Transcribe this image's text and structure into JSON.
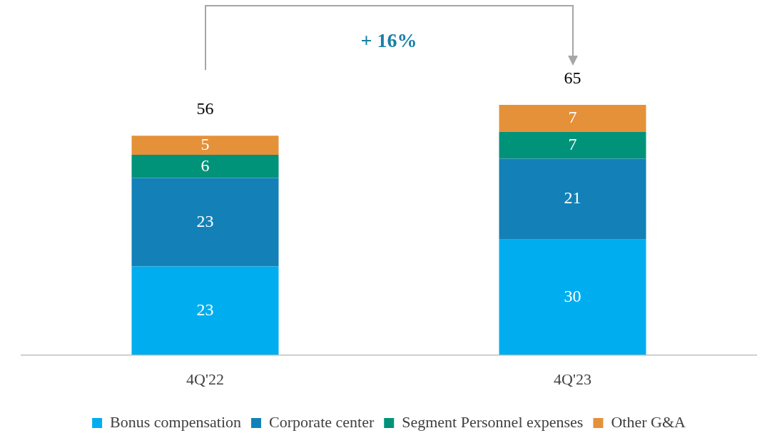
{
  "chart_data": {
    "type": "bar",
    "stacked": true,
    "categories": [
      "4Q'22",
      "4Q'23"
    ],
    "series": [
      {
        "name": "Bonus compensation",
        "color": "#00adef",
        "values": [
          23,
          30
        ]
      },
      {
        "name": "Corporate center",
        "color": "#1381b7",
        "values": [
          23,
          21
        ]
      },
      {
        "name": "Segment Personnel expenses",
        "color": "#00937a",
        "values": [
          6,
          7
        ]
      },
      {
        "name": "Other G&A",
        "color": "#e5913a",
        "values": [
          5,
          7
        ]
      }
    ],
    "data_labels": true,
    "totals": [
      "56",
      "65"
    ],
    "annotations": [
      "+ 16%"
    ],
    "legend": "bottom",
    "grid": false,
    "tick_labels": "x"
  }
}
